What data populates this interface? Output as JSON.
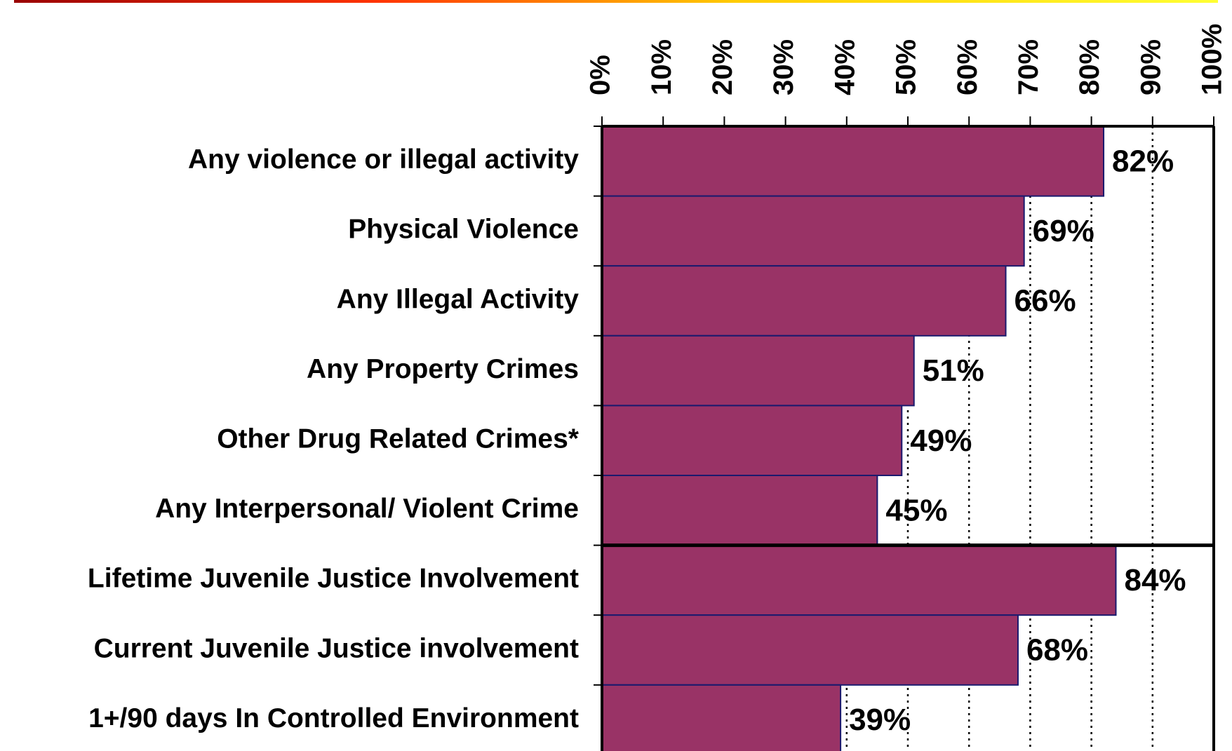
{
  "chart_data": {
    "type": "bar",
    "orientation": "horizontal",
    "categories": [
      "Any violence or illegal activity",
      "Physical Violence",
      "Any Illegal Activity",
      "Any Property Crimes",
      "Other Drug Related Crimes*",
      "Any Interpersonal/ Violent Crime",
      "Lifetime Juvenile Justice Involvement",
      "Current Juvenile Justice involvement",
      "1+/90 days In Controlled Environment"
    ],
    "values": [
      82,
      69,
      66,
      51,
      49,
      45,
      84,
      68,
      39
    ],
    "value_labels": [
      "82%",
      "69%",
      "66%",
      "51%",
      "49%",
      "45%",
      "84%",
      "68%",
      "39%"
    ],
    "color": "#993366",
    "xlim": [
      0,
      100
    ],
    "xticks": [
      {
        "value": 0,
        "label": "0%"
      },
      {
        "value": 10,
        "label": "10%"
      },
      {
        "value": 20,
        "label": "20%"
      },
      {
        "value": 30,
        "label": "30%"
      },
      {
        "value": 40,
        "label": "40%"
      },
      {
        "value": 50,
        "label": "50%"
      },
      {
        "value": 60,
        "label": "60%"
      },
      {
        "value": 70,
        "label": "70%"
      },
      {
        "value": 80,
        "label": "80%"
      },
      {
        "value": 90,
        "label": "90%"
      },
      {
        "value": 100,
        "label": "100%"
      }
    ],
    "grid": true
  }
}
